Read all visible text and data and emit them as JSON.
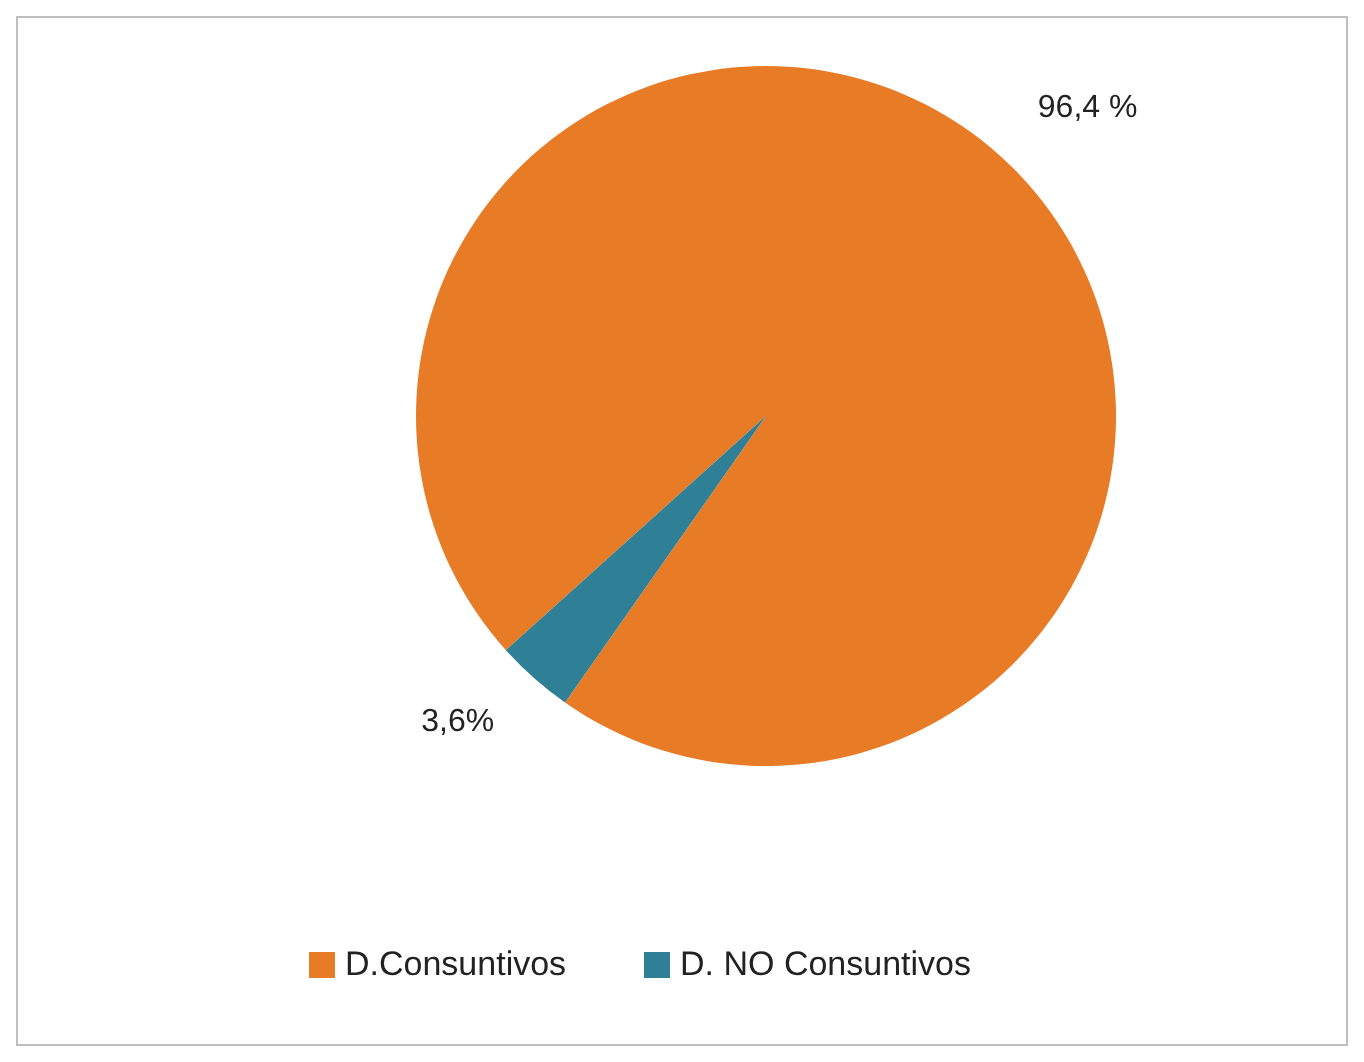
{
  "chart_data": {
    "type": "pie",
    "categories": [
      "D.Consuntivos",
      "D. NO Consuntivos"
    ],
    "values": [
      96.4,
      3.6
    ],
    "colors": [
      "#e87b26",
      "#2f7f96"
    ],
    "value_labels": [
      "96,4 %",
      "3,6%"
    ],
    "legend": "bottom"
  }
}
